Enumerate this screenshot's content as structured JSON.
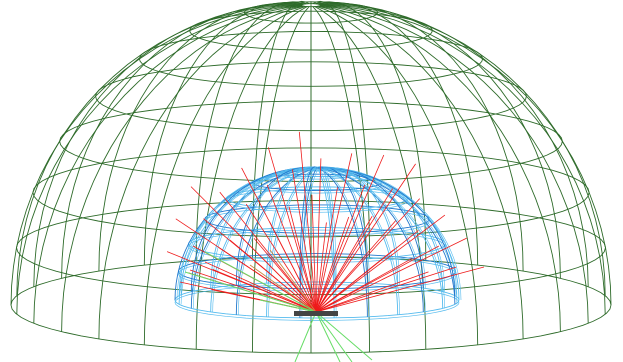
{
  "scene": {
    "description_visible": false,
    "colors": {
      "background": "#ffffff",
      "outer_dome": "#2e6b2a",
      "inner_dome_dark": "#2277cc",
      "inner_dome_light": "#55bbee",
      "ray_red": "#ee1b1b",
      "ray_green": "#66dd66",
      "ray_orange": "#cc8844",
      "source_bar": "#444444"
    },
    "outer_dome": {
      "rings": 8,
      "meridians": 32
    },
    "inner_dome": {
      "rings": 7,
      "meridians": 26
    },
    "rays": {
      "red_count": 42,
      "green_count": 7
    }
  }
}
